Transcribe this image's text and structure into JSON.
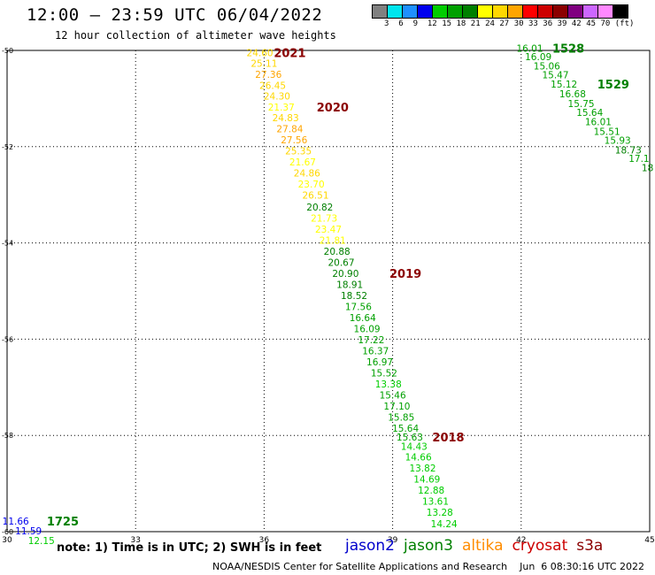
{
  "header": {
    "title": "12:00 – 23:59 UTC 06/04/2022",
    "subtitle": "12 hour collection of altimeter wave heights"
  },
  "legend": {
    "colors": [
      "#808080",
      "#00e5ee",
      "#1e90ff",
      "#0000ee",
      "#00cd00",
      "#00a000",
      "#008000",
      "#ffff00",
      "#ffd700",
      "#ffa500",
      "#ff0000",
      "#cd0000",
      "#8b0000",
      "#800080",
      "#cc66ff",
      "#ff88ff",
      "#000000"
    ],
    "labels": [
      "3",
      "6",
      "9",
      "12",
      "15",
      "18",
      "21",
      "24",
      "27",
      "30",
      "33",
      "36",
      "39",
      "42",
      "45",
      "70",
      "(ft)"
    ]
  },
  "note": "note: 1) Time is in UTC; 2) SWH is in feet",
  "satellites": [
    {
      "name": "jason2",
      "color": "#0000cc"
    },
    {
      "name": "jason3",
      "color": "#008000"
    },
    {
      "name": "altika",
      "color": "#ff8c00"
    },
    {
      "name": "cryosat",
      "color": "#cc0000"
    },
    {
      "name": "s3a",
      "color": "#8b0000"
    }
  ],
  "credit": "NOAA/NESDIS Center for Satellite Applications and Research    Jun  6 08:30:16 UTC 2022",
  "chart_data": {
    "type": "scatter",
    "xlim": [
      30,
      45
    ],
    "ylim": [
      -60,
      -50
    ],
    "x_ticks": [
      "30",
      "33",
      "36",
      "39",
      "42",
      "45"
    ],
    "y_ticks": [
      "-50",
      "-52",
      "-54",
      "-56",
      "-58",
      "-60"
    ],
    "grid": true,
    "points": [
      {
        "x": 35.9,
        "y": -50.05,
        "v": "24.60",
        "c": "#ffd700"
      },
      {
        "x": 36.0,
        "y": -50.27,
        "v": "25.11",
        "c": "#ffd700"
      },
      {
        "x": 36.1,
        "y": -50.5,
        "v": "27.36",
        "c": "#ffa500"
      },
      {
        "x": 36.2,
        "y": -50.73,
        "v": "26.45",
        "c": "#ffd700"
      },
      {
        "x": 36.3,
        "y": -50.95,
        "v": "24.30",
        "c": "#ffd700"
      },
      {
        "x": 36.4,
        "y": -51.18,
        "v": "21.37",
        "c": "#ffff00"
      },
      {
        "x": 36.5,
        "y": -51.4,
        "v": "24.83",
        "c": "#ffd700"
      },
      {
        "x": 36.6,
        "y": -51.63,
        "v": "27.84",
        "c": "#ffa500"
      },
      {
        "x": 36.7,
        "y": -51.86,
        "v": "27.56",
        "c": "#ffa500"
      },
      {
        "x": 36.8,
        "y": -52.09,
        "v": "25.35",
        "c": "#ffd700"
      },
      {
        "x": 36.9,
        "y": -52.32,
        "v": "21.67",
        "c": "#ffff00"
      },
      {
        "x": 37.0,
        "y": -52.55,
        "v": "24.86",
        "c": "#ffd700"
      },
      {
        "x": 37.1,
        "y": -52.78,
        "v": "23.70",
        "c": "#ffff00"
      },
      {
        "x": 37.2,
        "y": -53.01,
        "v": "26.51",
        "c": "#ffd700"
      },
      {
        "x": 37.3,
        "y": -53.25,
        "v": "20.82",
        "c": "#008000"
      },
      {
        "x": 37.4,
        "y": -53.48,
        "v": "21.73",
        "c": "#ffff00"
      },
      {
        "x": 37.5,
        "y": -53.71,
        "v": "23.47",
        "c": "#ffff00"
      },
      {
        "x": 37.6,
        "y": -53.94,
        "v": "21.81",
        "c": "#ffff00"
      },
      {
        "x": 37.7,
        "y": -54.17,
        "v": "20.88",
        "c": "#008000"
      },
      {
        "x": 37.8,
        "y": -54.4,
        "v": "20.67",
        "c": "#008000"
      },
      {
        "x": 37.9,
        "y": -54.63,
        "v": "20.90",
        "c": "#008000"
      },
      {
        "x": 38.0,
        "y": -54.86,
        "v": "18.91",
        "c": "#008000"
      },
      {
        "x": 38.1,
        "y": -55.09,
        "v": "18.52",
        "c": "#008000"
      },
      {
        "x": 38.2,
        "y": -55.32,
        "v": "17.56",
        "c": "#00a000"
      },
      {
        "x": 38.3,
        "y": -55.55,
        "v": "16.64",
        "c": "#00a000"
      },
      {
        "x": 38.4,
        "y": -55.78,
        "v": "16.09",
        "c": "#00a000"
      },
      {
        "x": 38.5,
        "y": -56.01,
        "v": "17.22",
        "c": "#00a000"
      },
      {
        "x": 38.6,
        "y": -56.24,
        "v": "16.37",
        "c": "#00a000"
      },
      {
        "x": 38.7,
        "y": -56.47,
        "v": "16.97",
        "c": "#00a000"
      },
      {
        "x": 38.8,
        "y": -56.7,
        "v": "15.52",
        "c": "#00a000"
      },
      {
        "x": 38.9,
        "y": -56.93,
        "v": "13.38",
        "c": "#00cd00"
      },
      {
        "x": 39.0,
        "y": -57.16,
        "v": "15.46",
        "c": "#00a000"
      },
      {
        "x": 39.1,
        "y": -57.39,
        "v": "17.10",
        "c": "#00a000"
      },
      {
        "x": 39.2,
        "y": -57.62,
        "v": "15.85",
        "c": "#00a000"
      },
      {
        "x": 39.3,
        "y": -57.85,
        "v": "15.64",
        "c": "#00a000"
      },
      {
        "x": 39.4,
        "y": -58.03,
        "v": "15.63",
        "c": "#00a000"
      },
      {
        "x": 39.5,
        "y": -58.23,
        "v": "14.43",
        "c": "#00cd00"
      },
      {
        "x": 39.6,
        "y": -58.45,
        "v": "14.66",
        "c": "#00cd00"
      },
      {
        "x": 39.7,
        "y": -58.68,
        "v": "13.82",
        "c": "#00cd00"
      },
      {
        "x": 39.8,
        "y": -58.91,
        "v": "14.69",
        "c": "#00cd00"
      },
      {
        "x": 39.9,
        "y": -59.14,
        "v": "12.88",
        "c": "#00cd00"
      },
      {
        "x": 40.0,
        "y": -59.37,
        "v": "13.61",
        "c": "#00cd00"
      },
      {
        "x": 40.1,
        "y": -59.6,
        "v": "13.28",
        "c": "#00cd00"
      },
      {
        "x": 40.2,
        "y": -59.83,
        "v": "14.24",
        "c": "#00cd00"
      },
      {
        "x": 42.2,
        "y": -49.95,
        "v": "16.01",
        "c": "#00a000"
      },
      {
        "x": 42.4,
        "y": -50.13,
        "v": "16.09",
        "c": "#00a000"
      },
      {
        "x": 42.6,
        "y": -50.32,
        "v": "15.06",
        "c": "#00a000"
      },
      {
        "x": 42.8,
        "y": -50.51,
        "v": "15.47",
        "c": "#00a000"
      },
      {
        "x": 43.0,
        "y": -50.7,
        "v": "15.12",
        "c": "#00a000"
      },
      {
        "x": 43.2,
        "y": -50.9,
        "v": "16.68",
        "c": "#00a000"
      },
      {
        "x": 43.4,
        "y": -51.1,
        "v": "15.75",
        "c": "#00a000"
      },
      {
        "x": 43.6,
        "y": -51.29,
        "v": "15.64",
        "c": "#00a000"
      },
      {
        "x": 43.8,
        "y": -51.48,
        "v": "16.01",
        "c": "#00a000"
      },
      {
        "x": 44.0,
        "y": -51.68,
        "v": "15.51",
        "c": "#00a000"
      },
      {
        "x": 44.25,
        "y": -51.87,
        "v": "15.93",
        "c": "#00a000"
      },
      {
        "x": 44.5,
        "y": -52.07,
        "v": "18.73",
        "c": "#008000"
      },
      {
        "x": 44.75,
        "y": -52.24,
        "v": "17.1",
        "c": "#00a000"
      },
      {
        "x": 44.95,
        "y": -52.44,
        "v": "18",
        "c": "#008000"
      },
      {
        "x": 30.2,
        "y": -59.78,
        "v": "11.66",
        "c": "#0000ee"
      },
      {
        "x": 30.5,
        "y": -59.98,
        "v": "11.59",
        "c": "#0000ee"
      },
      {
        "x": 30.8,
        "y": -60.18,
        "v": "12.15",
        "c": "#00cd00"
      }
    ],
    "annotations": [
      {
        "x": 36.6,
        "y": -50.05,
        "text": "2021",
        "c": "#8b0000"
      },
      {
        "x": 37.6,
        "y": -51.18,
        "text": "2020",
        "c": "#8b0000"
      },
      {
        "x": 39.3,
        "y": -54.63,
        "text": "2019",
        "c": "#8b0000"
      },
      {
        "x": 40.3,
        "y": -58.03,
        "text": "2018",
        "c": "#8b0000"
      },
      {
        "x": 43.1,
        "y": -49.95,
        "text": "1528",
        "c": "#008000"
      },
      {
        "x": 44.15,
        "y": -50.7,
        "text": "1529",
        "c": "#008000"
      },
      {
        "x": 31.3,
        "y": -59.78,
        "text": "1725",
        "c": "#008000"
      }
    ]
  }
}
